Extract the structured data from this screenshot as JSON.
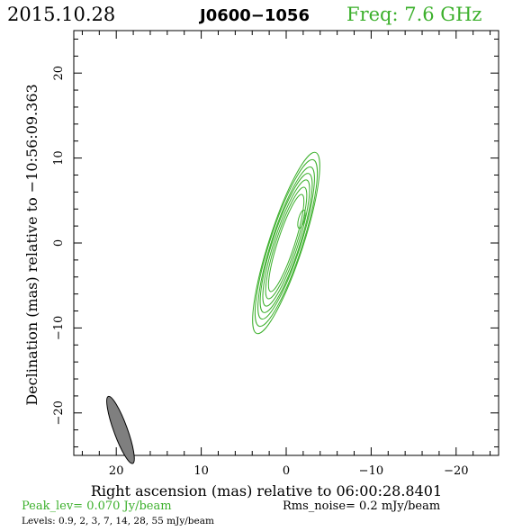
{
  "header": {
    "date": "2015.10.28",
    "source": "J0600−1056",
    "freq": "Freq: 7.6 GHz"
  },
  "colors": {
    "contour": "#3cb02c",
    "text": "#000000",
    "beam_fill": "#7f7f7f"
  },
  "chart_data": {
    "type": "contour",
    "title": "J0600−1056",
    "xlabel": "Right ascension (mas) relative to 06:00:28.8401",
    "ylabel": "Declination (mas) relative to −10:56:09.363",
    "xlim": [
      25,
      -25
    ],
    "ylim": [
      -25,
      25
    ],
    "x_ticks": [
      20,
      10,
      0,
      -10,
      -20
    ],
    "y_ticks": [
      20,
      10,
      0,
      -10,
      -20
    ],
    "x_tick_labels": [
      "20",
      "10",
      "0",
      "−10",
      "−20"
    ],
    "y_tick_labels": [
      "20",
      "10",
      "0",
      "−10",
      "−20"
    ],
    "peak_level": "Peak_lev=  0.070 Jy/beam",
    "rms_noise": "Rms_noise=   0.2 mJy/beam",
    "levels_text": "Levels: 0.9,   2,   3,   7,  14,  28,  55 mJy/beam",
    "levels_mjy": [
      0.9,
      2,
      3,
      7,
      14,
      28,
      55
    ],
    "peak_jy_per_beam": 0.07,
    "rms_mjy_per_beam": 0.2,
    "component": {
      "center": [
        0,
        0
      ],
      "position_angle_deg": 18,
      "contour_semi_axes_mas": [
        [
          1.0,
          6.0
        ],
        [
          1.2,
          6.9
        ],
        [
          1.4,
          7.8
        ],
        [
          1.6,
          8.6
        ],
        [
          1.7,
          9.4
        ],
        [
          1.9,
          10.3
        ],
        [
          2.0,
          11.2
        ]
      ]
    },
    "secondary_component": {
      "center": [
        -1.8,
        2.8
      ],
      "semi_axes_mas": [
        0.35,
        1.1
      ],
      "position_angle_deg": 15
    },
    "beam": {
      "center": [
        19.5,
        -22
      ],
      "major_mas": 4.2,
      "minor_mas": 0.8,
      "position_angle_deg": 20
    }
  }
}
